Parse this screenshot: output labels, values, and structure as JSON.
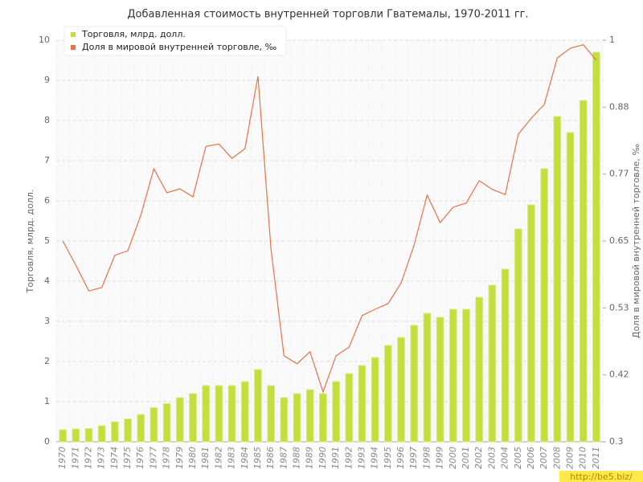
{
  "chart_data": {
    "type": "bar_line",
    "title": "Добавленная стоимость внутренней торговли Гватемалы, 1970-2011 гг.",
    "y_label": "Торговля, млрд. долл.",
    "y2_label": "Доля в мировой внутренней торговле, ‰",
    "watermark": "http://be5.biz/",
    "categories": [
      "1970",
      "1971",
      "1972",
      "1973",
      "1974",
      "1975",
      "1976",
      "1977",
      "1978",
      "1979",
      "1980",
      "1981",
      "1982",
      "1983",
      "1984",
      "1985",
      "1986",
      "1987",
      "1988",
      "1989",
      "1990",
      "1991",
      "1992",
      "1993",
      "1994",
      "1995",
      "1996",
      "1997",
      "1998",
      "1999",
      "2000",
      "2001",
      "2002",
      "2003",
      "2004",
      "2005",
      "2006",
      "2007",
      "2008",
      "2009",
      "2010",
      "2011"
    ],
    "series": [
      {
        "name": "Торговля, млрд. долл.",
        "color": "#c2de3f",
        "type": "bar",
        "values": [
          0.3,
          0.32,
          0.33,
          0.4,
          0.5,
          0.57,
          0.68,
          0.85,
          0.95,
          1.1,
          1.2,
          1.4,
          1.4,
          1.4,
          1.5,
          1.8,
          1.4,
          1.1,
          1.2,
          1.3,
          1.2,
          1.5,
          1.7,
          1.9,
          2.1,
          2.4,
          2.6,
          2.9,
          3.2,
          3.1,
          3.3,
          3.3,
          3.6,
          3.9,
          4.3,
          5.3,
          5.9,
          6.8,
          8.1,
          7.7,
          8.5,
          9.7
        ]
      },
      {
        "name": "Доля в мировой внутренней торговле, ‰",
        "color": "#e8734a",
        "type": "line",
        "axis": "y2",
        "values": [
          0.65,
          0.608,
          0.563,
          0.569,
          0.625,
          0.633,
          0.695,
          0.776,
          0.734,
          0.741,
          0.727,
          0.815,
          0.819,
          0.794,
          0.811,
          0.937,
          0.636,
          0.45,
          0.436,
          0.457,
          0.387,
          0.45,
          0.465,
          0.52,
          0.531,
          0.541,
          0.577,
          0.643,
          0.73,
          0.682,
          0.709,
          0.716,
          0.755,
          0.74,
          0.731,
          0.836,
          0.864,
          0.888,
          0.969,
          0.986,
          0.992,
          0.965
        ]
      }
    ],
    "ylim": [
      0,
      10
    ],
    "yticks": [
      0,
      1,
      2,
      3,
      4,
      5,
      6,
      7,
      8,
      9,
      10
    ],
    "y2lim": [
      0.3,
      1
    ],
    "y2ticks": [
      0.3,
      {
        "value": 0.41667,
        "label": "0.42"
      },
      {
        "value": 0.53333,
        "label": "0.53"
      },
      0.65,
      {
        "value": 0.76667,
        "label": "0.77"
      },
      {
        "value": 0.88333,
        "label": "0.88"
      },
      1
    ],
    "grid": true,
    "legend": "top-left"
  }
}
